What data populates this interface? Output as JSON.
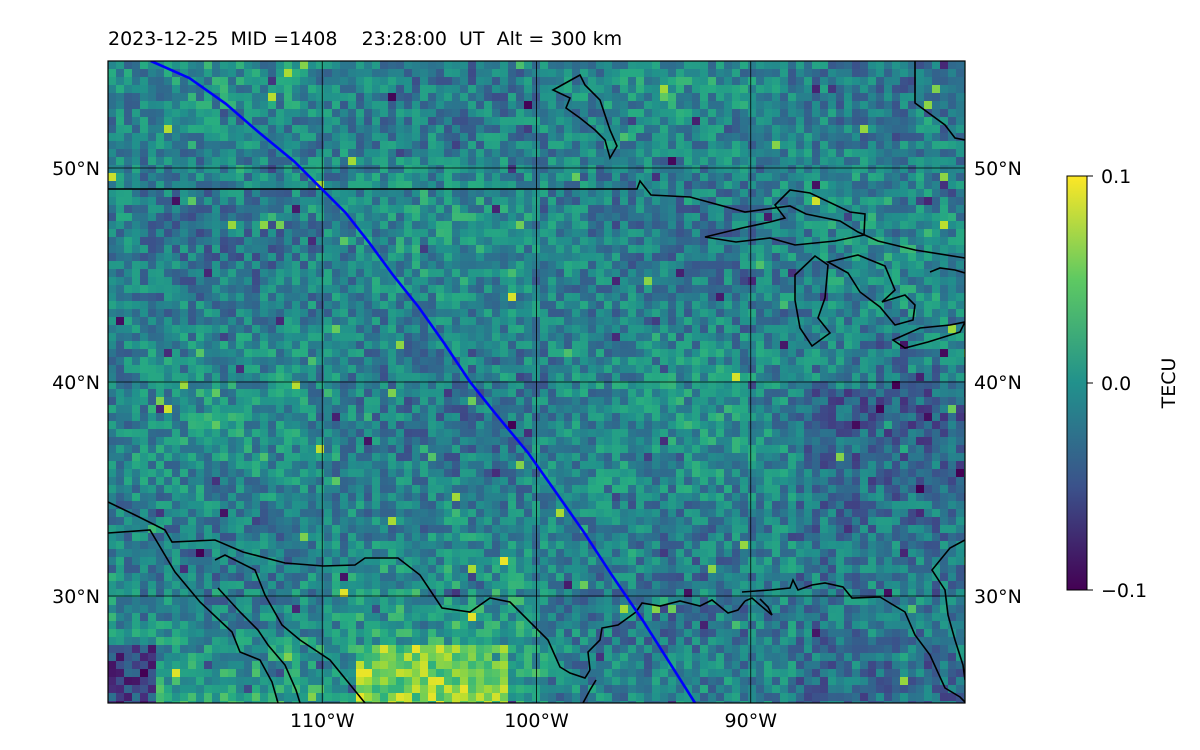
{
  "title": "2023-12-25  MID =1408    23:28:00  UT  Alt = 300 km",
  "map": {
    "lon_range": [
      -120,
      -80
    ],
    "lat_range": [
      25,
      55
    ],
    "lat_ticks": [
      {
        "value": 50,
        "label": "50°N"
      },
      {
        "value": 40,
        "label": "40°N"
      },
      {
        "value": 30,
        "label": "30°N"
      }
    ],
    "lon_ticks": [
      {
        "value": -110,
        "label": "110°W"
      },
      {
        "value": -100,
        "label": "100°W"
      },
      {
        "value": -90,
        "label": "90°W"
      }
    ],
    "grid": true,
    "field_colormap": "viridis",
    "track_color": "#0000ff",
    "coastline_color": "#000000",
    "satellite_track": [
      [
        -118.0,
        55.0
      ],
      [
        -116.2,
        54.2
      ],
      [
        -114.5,
        53.0
      ],
      [
        -113.0,
        51.7
      ],
      [
        -111.3,
        50.3
      ],
      [
        -110.0,
        49.0
      ],
      [
        -108.9,
        47.9
      ],
      [
        -107.8,
        46.5
      ],
      [
        -106.7,
        45.0
      ],
      [
        -105.5,
        43.5
      ],
      [
        -104.3,
        41.8
      ],
      [
        -103.1,
        40.0
      ],
      [
        -101.9,
        38.5
      ],
      [
        -100.4,
        36.7
      ],
      [
        -99.2,
        35.0
      ],
      [
        -97.8,
        33.0
      ],
      [
        -96.5,
        31.0
      ],
      [
        -95.0,
        28.8
      ],
      [
        -93.8,
        26.9
      ],
      [
        -92.6,
        25.0
      ]
    ]
  },
  "colorbar": {
    "label": "TECU",
    "min": -0.1,
    "max": 0.1,
    "ticks": [
      {
        "value": 0.1,
        "label": "0.1"
      },
      {
        "value": 0.0,
        "label": "0.0"
      },
      {
        "value": -0.1,
        "label": "−0.1"
      }
    ],
    "colors": [
      "#440154",
      "#3b528b",
      "#21918c",
      "#5ec962",
      "#fde725"
    ]
  }
}
